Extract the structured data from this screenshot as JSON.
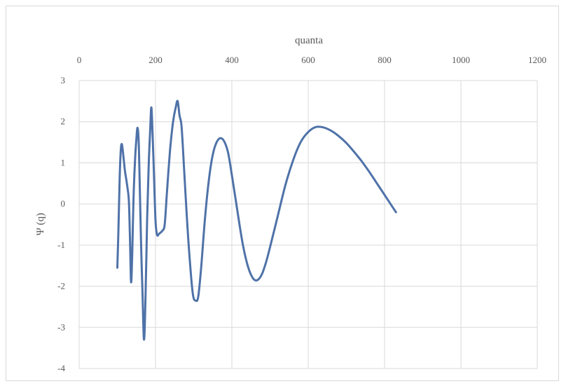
{
  "chart_data": {
    "type": "line",
    "title": "",
    "xlabel": "quanta",
    "ylabel": "Ψ (q)",
    "x_axis_position": "top",
    "xlim": [
      0,
      1200
    ],
    "ylim": [
      -4,
      3
    ],
    "xticks": [
      "0",
      "200",
      "400",
      "600",
      "800",
      "1000",
      "1200"
    ],
    "yticks": [
      "3",
      "2",
      "1",
      "0",
      "-1",
      "-2",
      "-3",
      "-4"
    ],
    "grid": true,
    "legend": "none",
    "series": [
      {
        "color": "#4f72a8",
        "points": [
          [
            100,
            -1.55
          ],
          [
            103,
            -0.6
          ],
          [
            106,
            0.6
          ],
          [
            109,
            1.3
          ],
          [
            112,
            1.45
          ],
          [
            116,
            1.15
          ],
          [
            120,
            0.8
          ],
          [
            125,
            0.5
          ],
          [
            130,
            0.1
          ],
          [
            133,
            -0.8
          ],
          [
            136,
            -1.9
          ],
          [
            139,
            -1.2
          ],
          [
            142,
            0.0
          ],
          [
            146,
            1.0
          ],
          [
            150,
            1.6
          ],
          [
            153,
            1.85
          ],
          [
            156,
            1.5
          ],
          [
            159,
            0.3
          ],
          [
            162,
            -0.9
          ],
          [
            166,
            -2.2
          ],
          [
            170,
            -3.3
          ],
          [
            174,
            -2.2
          ],
          [
            178,
            -0.4
          ],
          [
            182,
            0.9
          ],
          [
            186,
            1.8
          ],
          [
            189,
            2.35
          ],
          [
            192,
            1.8
          ],
          [
            196,
            0.7
          ],
          [
            200,
            -0.4
          ],
          [
            204,
            -0.75
          ],
          [
            210,
            -0.72
          ],
          [
            218,
            -0.65
          ],
          [
            224,
            -0.5
          ],
          [
            230,
            0.3
          ],
          [
            238,
            1.3
          ],
          [
            246,
            2.0
          ],
          [
            253,
            2.35
          ],
          [
            258,
            2.5
          ],
          [
            263,
            2.15
          ],
          [
            268,
            1.9
          ],
          [
            274,
            1.0
          ],
          [
            282,
            -0.3
          ],
          [
            290,
            -1.4
          ],
          [
            298,
            -2.2
          ],
          [
            305,
            -2.35
          ],
          [
            312,
            -2.25
          ],
          [
            320,
            -1.5
          ],
          [
            330,
            -0.3
          ],
          [
            340,
            0.6
          ],
          [
            350,
            1.2
          ],
          [
            360,
            1.5
          ],
          [
            370,
            1.6
          ],
          [
            380,
            1.52
          ],
          [
            390,
            1.25
          ],
          [
            400,
            0.7
          ],
          [
            410,
            0.1
          ],
          [
            420,
            -0.5
          ],
          [
            430,
            -1.05
          ],
          [
            440,
            -1.45
          ],
          [
            450,
            -1.72
          ],
          [
            460,
            -1.85
          ],
          [
            470,
            -1.83
          ],
          [
            480,
            -1.68
          ],
          [
            490,
            -1.4
          ],
          [
            500,
            -1.05
          ],
          [
            520,
            -0.3
          ],
          [
            540,
            0.45
          ],
          [
            560,
            1.05
          ],
          [
            580,
            1.5
          ],
          [
            600,
            1.75
          ],
          [
            620,
            1.87
          ],
          [
            640,
            1.86
          ],
          [
            660,
            1.78
          ],
          [
            680,
            1.65
          ],
          [
            700,
            1.48
          ],
          [
            720,
            1.27
          ],
          [
            740,
            1.04
          ],
          [
            760,
            0.78
          ],
          [
            780,
            0.5
          ],
          [
            800,
            0.22
          ],
          [
            830,
            -0.2
          ]
        ]
      }
    ]
  }
}
